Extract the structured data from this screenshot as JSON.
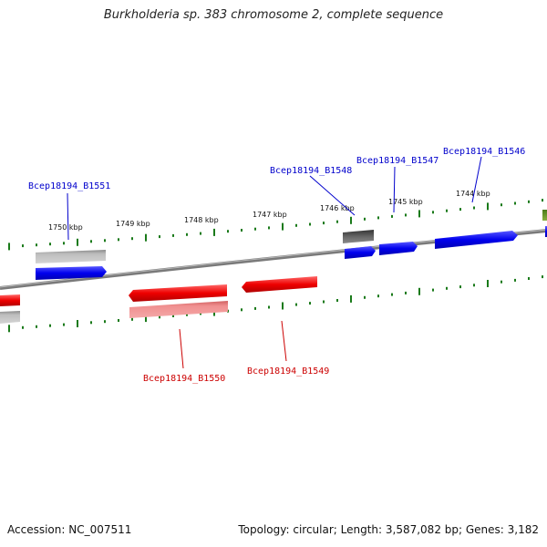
{
  "title": "Burkholderia sp. 383 chromosome 2, complete sequence",
  "footer": {
    "accession": "Accession: NC_007511",
    "topology": "Topology: circular; Length: 3,587,082 bp; Genes: 3,182"
  },
  "ruler": {
    "labels": [
      "1750 kbp",
      "1749 kbp",
      "1748 kbp",
      "1747 kbp",
      "1746 kbp",
      "1745 kbp",
      "1744 kbp"
    ]
  },
  "genes": {
    "labels": [
      "Bcep18194_B1551",
      "Bcep18194_B1548",
      "Bcep18194_B1547",
      "Bcep18194_B1546",
      "Bcep18194_B1550",
      "Bcep18194_B1549"
    ]
  },
  "colors": {
    "forward_cds": "#0000ee",
    "reverse_cds": "#ee0000",
    "gene_gray": "#a0a0a0",
    "dark_gray": "#555555",
    "tick_green": "#1a7a1a",
    "backbone": "#808080",
    "forward_label": "#0000cc",
    "reverse_label": "#cc0000"
  }
}
